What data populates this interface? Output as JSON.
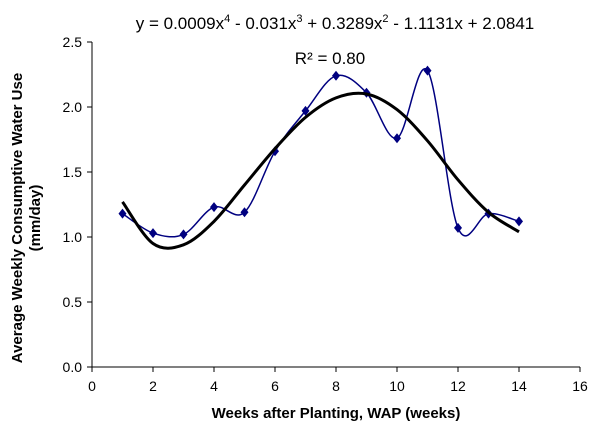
{
  "chart_data": {
    "type": "line",
    "equation": [
      "y = 0.0009x",
      "4",
      " - 0.031x",
      "3",
      " + 0.3289x",
      "2",
      " - 1.1131x + 2.0841"
    ],
    "r_squared": "R² = 0.80",
    "x_label": "Weeks after Planting, WAP (weeks)",
    "y_label": [
      "Average Weekly Consumptive Water Use",
      "(mm/day)"
    ],
    "x": [
      1,
      2,
      3,
      4,
      5,
      6,
      7,
      8,
      9,
      10,
      11,
      12,
      13,
      14
    ],
    "series": [
      {
        "color": "#000080",
        "values": [
          1.18,
          1.03,
          1.02,
          1.23,
          1.19,
          1.66,
          1.97,
          2.24,
          2.11,
          1.76,
          2.28,
          1.07,
          1.18,
          1.12
        ]
      }
    ],
    "trendline": {
      "color": "#000000",
      "values": [
        1.27,
        0.95,
        0.94,
        1.12,
        1.4,
        1.68,
        1.92,
        2.07,
        2.1,
        1.98,
        1.74,
        1.44,
        1.19,
        1.04
      ]
    },
    "xlim": [
      0,
      16
    ],
    "xticks": [
      0,
      2,
      4,
      6,
      8,
      10,
      12,
      14,
      16
    ],
    "ylim": [
      0,
      2.5
    ],
    "yticks": [
      {
        "value": 0,
        "label": "0.0"
      },
      {
        "value": 0.5,
        "label": "0.5"
      },
      {
        "value": 1,
        "label": "1.0"
      },
      {
        "value": 1.5,
        "label": "1.5"
      },
      {
        "value": 2,
        "label": "2.0"
      },
      {
        "value": 2.5,
        "label": "2.5"
      }
    ],
    "grid": false
  }
}
